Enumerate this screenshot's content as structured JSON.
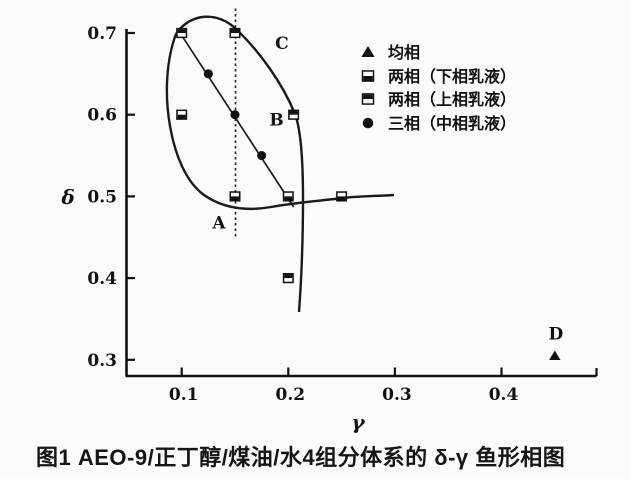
{
  "figure": {
    "caption": "图1  AEO-9/正丁醇/煤油/水4组分体系的 δ-γ 鱼形相图"
  },
  "chart_data": {
    "type": "scatter",
    "title": "",
    "xlabel": "γ",
    "ylabel": "δ",
    "xlim": [
      0.05,
      0.49
    ],
    "ylim": [
      0.28,
      0.73
    ],
    "x_ticks": [
      0.1,
      0.2,
      0.3,
      0.4
    ],
    "x_tick_labels": [
      "0.1",
      "0.2",
      "0.3",
      "0.4"
    ],
    "y_ticks": [
      0.7,
      0.6,
      0.5,
      0.4,
      0.3
    ],
    "y_tick_labels": [
      "0.7",
      "0.6",
      "0.5",
      "0.4",
      "0.3"
    ],
    "grid": "off",
    "legend_position": "top-right",
    "series": [
      {
        "name": "均相",
        "marker": "triangle-filled",
        "points": [
          [
            0.45,
            0.305
          ]
        ]
      },
      {
        "name": "两相（下相乳液）",
        "marker": "square-bottom-filled",
        "points": [
          [
            0.1,
            0.6
          ],
          [
            0.15,
            0.5
          ],
          [
            0.2,
            0.5
          ],
          [
            0.25,
            0.5
          ]
        ]
      },
      {
        "name": "两相（上相乳液）",
        "marker": "square-top-filled",
        "points": [
          [
            0.1,
            0.7
          ],
          [
            0.15,
            0.7
          ],
          [
            0.205,
            0.6
          ],
          [
            0.2,
            0.4
          ]
        ]
      },
      {
        "name": "三相（中相乳液）",
        "marker": "circle-filled",
        "points": [
          [
            0.125,
            0.65
          ],
          [
            0.15,
            0.6
          ],
          [
            0.175,
            0.55
          ]
        ]
      }
    ],
    "three_phase_line": {
      "x1": 0.097,
      "y1": 0.703,
      "x2": 0.205,
      "y2": 0.487
    },
    "vertical_guide": {
      "x": 0.15,
      "y_top": 0.73,
      "y_bottom": 0.449
    },
    "annotations": [
      {
        "text": "A",
        "x": 0.135,
        "y": 0.468
      },
      {
        "text": "B",
        "x": 0.189,
        "y": 0.594
      },
      {
        "text": "C",
        "x": 0.194,
        "y": 0.688
      },
      {
        "text": "D",
        "x": 0.451,
        "y": 0.332
      }
    ]
  }
}
